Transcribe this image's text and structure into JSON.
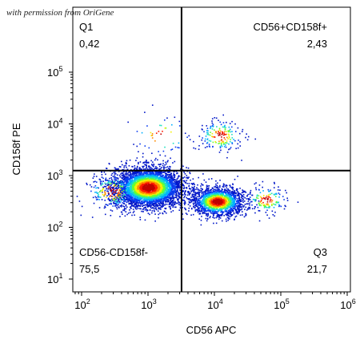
{
  "watermark": "with permission from OriGene",
  "chart_data": {
    "type": "scatter",
    "subtype": "flow-cytometry-density-dot-plot",
    "xlabel": "CD56 APC",
    "ylabel": "CD158f PE",
    "xscale": "log",
    "yscale": "log",
    "xlim": [
      60,
      1000000
    ],
    "ylim": [
      8,
      20000
    ],
    "x_ticks": [
      {
        "base": "10",
        "exp": "2",
        "value": 100
      },
      {
        "base": "10",
        "exp": "3",
        "value": 1000
      },
      {
        "base": "10",
        "exp": "4",
        "value": 10000
      },
      {
        "base": "10",
        "exp": "5",
        "value": 100000
      },
      {
        "base": "10",
        "exp": "6",
        "value": 1000000
      }
    ],
    "y_ticks": [
      {
        "base": "10",
        "exp": "1",
        "value": 10
      },
      {
        "base": "10",
        "exp": "2",
        "value": 100
      },
      {
        "base": "10",
        "exp": "3",
        "value": 1000
      },
      {
        "base": "10",
        "exp": "4",
        "value": 10000
      },
      {
        "base": "10",
        "exp": "5",
        "value": 100000
      }
    ],
    "gates": {
      "x": 3200,
      "y": 1250
    },
    "quadrants": [
      {
        "name": "Q1",
        "value": "0,42",
        "position": "top-left"
      },
      {
        "name": "CD56+CD158f+",
        "value": "2,43",
        "position": "top-right"
      },
      {
        "name": "CD56-CD158f-",
        "value": "75,5",
        "position": "bottom-left"
      },
      {
        "name": "Q3",
        "value": "21,7",
        "position": "bottom-right"
      }
    ],
    "populations": [
      {
        "x": 1000,
        "y": 600,
        "count": 4200,
        "sx": 0.26,
        "sy": 0.19
      },
      {
        "x": 11000,
        "y": 320,
        "count": 1700,
        "sx": 0.2,
        "sy": 0.14
      },
      {
        "x": 12000,
        "y": 6000,
        "count": 180,
        "sx": 0.18,
        "sy": 0.17
      },
      {
        "x": 1600,
        "y": 6000,
        "count": 50,
        "sx": 0.25,
        "sy": 0.2
      },
      {
        "x": 60000,
        "y": 350,
        "count": 150,
        "sx": 0.17,
        "sy": 0.14
      },
      {
        "x": 280,
        "y": 500,
        "count": 200,
        "sx": 0.2,
        "sy": 0.18
      }
    ],
    "density_colors": [
      "#0016c8",
      "#0a3cf0",
      "#00b0ff",
      "#1fe0c0",
      "#66ff33",
      "#f4f000",
      "#ff8c00",
      "#ff1a00",
      "#c00000"
    ],
    "grid": false,
    "legend": "none"
  }
}
